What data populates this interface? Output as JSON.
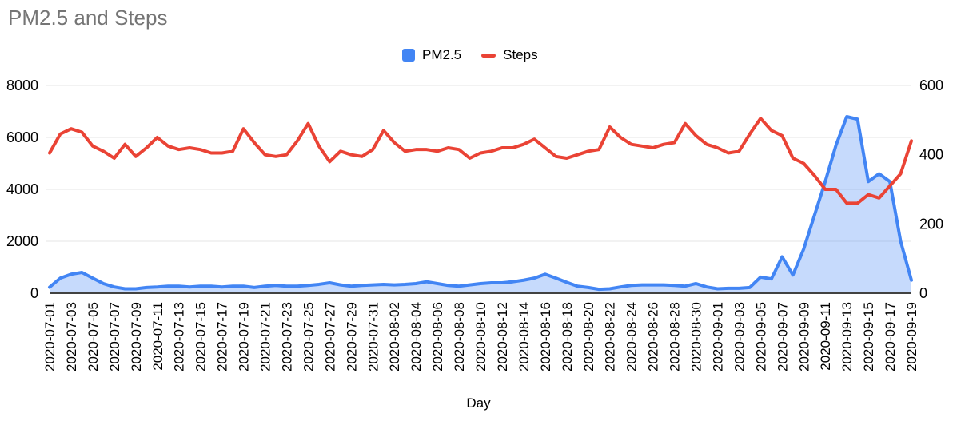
{
  "page": {
    "background": "#ffffff"
  },
  "chart_data": {
    "type": "combo",
    "title": "PM2.5 and Steps",
    "xlabel": "Day",
    "legend_position": "top",
    "grid": true,
    "x_label_step": 2,
    "left_axis": {
      "min": 0,
      "max": 8000,
      "ticks": [
        0,
        2000,
        4000,
        6000,
        8000
      ]
    },
    "right_axis": {
      "min": 0,
      "max": 600,
      "ticks": [
        0,
        200,
        400,
        600
      ]
    },
    "colors": {
      "grid": "#e6e6e6",
      "axis_line": "#424242",
      "tick_text": "#000000",
      "title_text": "#757575",
      "pm25_line": "#4285f4",
      "pm25_fill": "rgba(66,133,244,0.30)",
      "steps_line": "#ea4335"
    },
    "x": [
      "2020-07-01",
      "2020-07-02",
      "2020-07-03",
      "2020-07-04",
      "2020-07-05",
      "2020-07-06",
      "2020-07-07",
      "2020-07-08",
      "2020-07-09",
      "2020-07-10",
      "2020-07-11",
      "2020-07-12",
      "2020-07-13",
      "2020-07-14",
      "2020-07-15",
      "2020-07-16",
      "2020-07-17",
      "2020-07-18",
      "2020-07-19",
      "2020-07-20",
      "2020-07-21",
      "2020-07-22",
      "2020-07-23",
      "2020-07-24",
      "2020-07-25",
      "2020-07-26",
      "2020-07-27",
      "2020-07-28",
      "2020-07-29",
      "2020-07-30",
      "2020-07-31",
      "2020-08-01",
      "2020-08-02",
      "2020-08-03",
      "2020-08-04",
      "2020-08-05",
      "2020-08-06",
      "2020-08-07",
      "2020-08-08",
      "2020-08-09",
      "2020-08-10",
      "2020-08-11",
      "2020-08-12",
      "2020-08-13",
      "2020-08-14",
      "2020-08-15",
      "2020-08-16",
      "2020-08-17",
      "2020-08-18",
      "2020-08-19",
      "2020-08-20",
      "2020-08-21",
      "2020-08-22",
      "2020-08-23",
      "2020-08-24",
      "2020-08-25",
      "2020-08-26",
      "2020-08-27",
      "2020-08-28",
      "2020-08-29",
      "2020-08-30",
      "2020-08-31",
      "2020-09-01",
      "2020-09-02",
      "2020-09-03",
      "2020-09-04",
      "2020-09-05",
      "2020-09-06",
      "2020-09-07",
      "2020-09-08",
      "2020-09-09",
      "2020-09-10",
      "2020-09-11",
      "2020-09-12",
      "2020-09-13",
      "2020-09-14",
      "2020-09-15",
      "2020-09-16",
      "2020-09-17",
      "2020-09-18",
      "2020-09-19"
    ],
    "series": [
      {
        "name": "PM2.5",
        "type": "area",
        "axis": "left",
        "color": "#4285f4",
        "fill_color": "rgba(66,133,244,0.30)",
        "values": [
          230,
          580,
          730,
          800,
          580,
          370,
          240,
          170,
          170,
          220,
          240,
          270,
          270,
          240,
          270,
          270,
          240,
          270,
          270,
          220,
          270,
          300,
          270,
          270,
          300,
          340,
          400,
          320,
          270,
          300,
          320,
          340,
          320,
          340,
          370,
          440,
          370,
          300,
          270,
          320,
          370,
          400,
          400,
          440,
          500,
          580,
          730,
          580,
          420,
          270,
          220,
          150,
          170,
          240,
          300,
          320,
          320,
          320,
          300,
          270,
          370,
          240,
          170,
          190,
          190,
          220,
          620,
          550,
          1400,
          700,
          1700,
          3000,
          4300,
          5700,
          6800,
          6700,
          4300,
          4600,
          4300,
          2000,
          500
        ]
      },
      {
        "name": "Steps",
        "type": "line",
        "axis": "right",
        "color": "#ea4335",
        "values": [
          405,
          460,
          475,
          465,
          425,
          410,
          390,
          430,
          395,
          420,
          450,
          425,
          415,
          420,
          415,
          405,
          405,
          410,
          475,
          435,
          400,
          395,
          400,
          440,
          490,
          425,
          380,
          410,
          400,
          395,
          415,
          470,
          435,
          410,
          415,
          415,
          410,
          420,
          415,
          390,
          405,
          410,
          420,
          420,
          430,
          445,
          420,
          395,
          390,
          400,
          410,
          415,
          480,
          450,
          430,
          425,
          420,
          430,
          435,
          490,
          455,
          430,
          420,
          405,
          410,
          460,
          505,
          470,
          455,
          390,
          375,
          340,
          300,
          300,
          260,
          260,
          285,
          275,
          310,
          345,
          440
        ]
      }
    ]
  }
}
